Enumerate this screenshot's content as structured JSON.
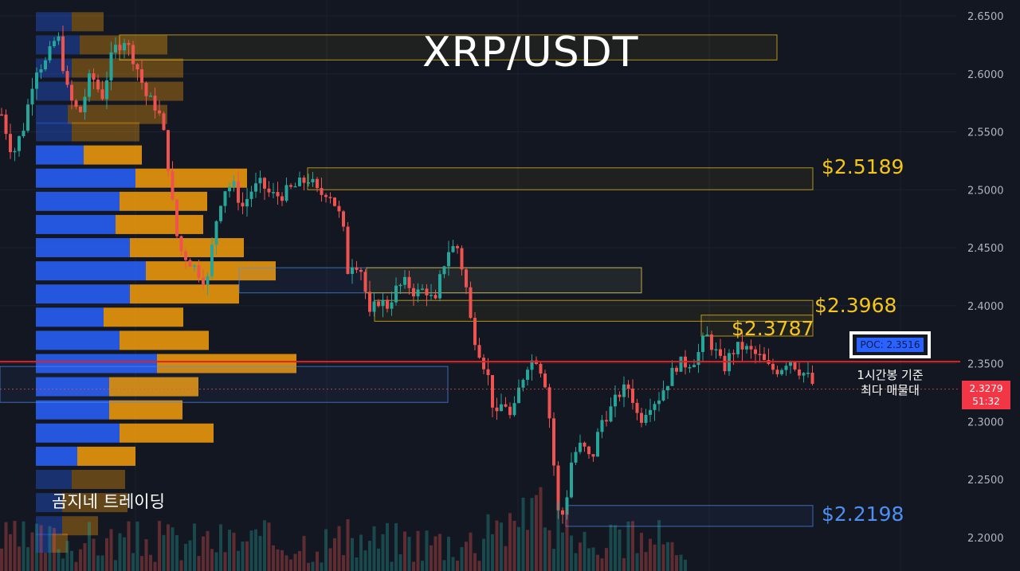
{
  "title": "XRP/USDT",
  "brand": "곰지네 트레이딩",
  "levels": {
    "l1": "$2.5189",
    "l2": "$2.3968",
    "l3": "$2.3787",
    "l4": "$2.2198"
  },
  "poc": {
    "label": "POC: 2.3516",
    "note_line1": "1시간봉 기준",
    "note_line2": "최다 매물대"
  },
  "current": {
    "price": "2.3279",
    "countdown": "51:32"
  },
  "colors": {
    "background": "#131722",
    "up": "#26a69a",
    "down": "#ef5350",
    "level_yellow": "#f5c518",
    "level_blue": "#4d8ff2",
    "poc_line": "#e02424",
    "vp_blue": "#2962ff",
    "vp_orange": "#f59e0b"
  },
  "chart_data": {
    "type": "candlestick",
    "pair": "XRP/USDT",
    "timeframe_note": "1시간봉",
    "y_axis": {
      "ticks": [
        "2.6500",
        "2.6000",
        "2.5500",
        "2.5000",
        "2.4500",
        "2.4000",
        "2.3500",
        "2.3000",
        "2.2500",
        "2.2000"
      ],
      "range": [
        2.186,
        2.66
      ]
    },
    "levels": [
      {
        "price": 2.5189,
        "color": "yellow"
      },
      {
        "price": 2.3968,
        "color": "yellow"
      },
      {
        "price": 2.3787,
        "color": "yellow"
      },
      {
        "price": 2.2198,
        "color": "blue"
      }
    ],
    "poc_price": 2.3516,
    "last_price": 2.3279,
    "close_path": [
      [
        0,
        2.565
      ],
      [
        14,
        2.53
      ],
      [
        28,
        2.555
      ],
      [
        42,
        2.605
      ],
      [
        56,
        2.61
      ],
      [
        70,
        2.635
      ],
      [
        84,
        2.58
      ],
      [
        98,
        2.565
      ],
      [
        112,
        2.6
      ],
      [
        126,
        2.58
      ],
      [
        140,
        2.62
      ],
      [
        154,
        2.63
      ],
      [
        168,
        2.61
      ],
      [
        182,
        2.58
      ],
      [
        196,
        2.57
      ],
      [
        206,
        2.54
      ],
      [
        214,
        2.49
      ],
      [
        222,
        2.45
      ],
      [
        234,
        2.44
      ],
      [
        246,
        2.43
      ],
      [
        258,
        2.42
      ],
      [
        268,
        2.47
      ],
      [
        278,
        2.5
      ],
      [
        290,
        2.505
      ],
      [
        302,
        2.485
      ],
      [
        314,
        2.5
      ],
      [
        326,
        2.505
      ],
      [
        338,
        2.495
      ],
      [
        350,
        2.495
      ],
      [
        362,
        2.5
      ],
      [
        374,
        2.505
      ],
      [
        386,
        2.51
      ],
      [
        398,
        2.495
      ],
      [
        410,
        2.5
      ],
      [
        420,
        2.485
      ],
      [
        428,
        2.47
      ],
      [
        434,
        2.43
      ],
      [
        442,
        2.44
      ],
      [
        452,
        2.43
      ],
      [
        462,
        2.39
      ],
      [
        472,
        2.405
      ],
      [
        484,
        2.4
      ],
      [
        496,
        2.415
      ],
      [
        508,
        2.42
      ],
      [
        520,
        2.41
      ],
      [
        532,
        2.415
      ],
      [
        544,
        2.4
      ],
      [
        552,
        2.43
      ],
      [
        562,
        2.45
      ],
      [
        572,
        2.45
      ],
      [
        582,
        2.42
      ],
      [
        590,
        2.38
      ],
      [
        600,
        2.36
      ],
      [
        610,
        2.34
      ],
      [
        620,
        2.3
      ],
      [
        630,
        2.32
      ],
      [
        640,
        2.3
      ],
      [
        650,
        2.33
      ],
      [
        660,
        2.35
      ],
      [
        672,
        2.355
      ],
      [
        684,
        2.33
      ],
      [
        692,
        2.27
      ],
      [
        700,
        2.21
      ],
      [
        708,
        2.23
      ],
      [
        716,
        2.27
      ],
      [
        728,
        2.28
      ],
      [
        740,
        2.265
      ],
      [
        752,
        2.3
      ],
      [
        764,
        2.31
      ],
      [
        776,
        2.325
      ],
      [
        788,
        2.33
      ],
      [
        800,
        2.3
      ],
      [
        812,
        2.315
      ],
      [
        824,
        2.32
      ],
      [
        836,
        2.335
      ],
      [
        848,
        2.35
      ],
      [
        860,
        2.35
      ],
      [
        872,
        2.355
      ],
      [
        884,
        2.375
      ],
      [
        896,
        2.36
      ],
      [
        906,
        2.345
      ],
      [
        916,
        2.36
      ],
      [
        928,
        2.365
      ],
      [
        940,
        2.36
      ],
      [
        952,
        2.355
      ],
      [
        964,
        2.345
      ],
      [
        976,
        2.345
      ],
      [
        988,
        2.355
      ],
      [
        1000,
        2.345
      ],
      [
        1010,
        2.34
      ],
      [
        1020,
        2.33
      ]
    ],
    "volume_profile": [
      {
        "price": 2.645,
        "buy": 45,
        "sell": 40
      },
      {
        "price": 2.625,
        "buy": 55,
        "sell": 110
      },
      {
        "price": 2.605,
        "buy": 45,
        "sell": 140
      },
      {
        "price": 2.585,
        "buy": 45,
        "sell": 140
      },
      {
        "price": 2.565,
        "buy": 40,
        "sell": 125
      },
      {
        "price": 2.55,
        "buy": 45,
        "sell": 85
      },
      {
        "price": 2.53,
        "buy": 60,
        "sell": 73
      },
      {
        "price": 2.51,
        "buy": 125,
        "sell": 140
      },
      {
        "price": 2.49,
        "buy": 105,
        "sell": 110
      },
      {
        "price": 2.47,
        "buy": 100,
        "sell": 110
      },
      {
        "price": 2.45,
        "buy": 118,
        "sell": 143
      },
      {
        "price": 2.43,
        "buy": 138,
        "sell": 163
      },
      {
        "price": 2.41,
        "buy": 118,
        "sell": 137
      },
      {
        "price": 2.39,
        "buy": 85,
        "sell": 100
      },
      {
        "price": 2.37,
        "buy": 105,
        "sell": 112
      },
      {
        "price": 2.35,
        "buy": 152,
        "sell": 175
      },
      {
        "price": 2.33,
        "buy": 92,
        "sell": 112
      },
      {
        "price": 2.31,
        "buy": 92,
        "sell": 92
      },
      {
        "price": 2.29,
        "buy": 105,
        "sell": 118
      },
      {
        "price": 2.27,
        "buy": 52,
        "sell": 73
      },
      {
        "price": 2.25,
        "buy": 45,
        "sell": 67
      },
      {
        "price": 2.23,
        "buy": 33,
        "sell": 82
      },
      {
        "price": 2.21,
        "buy": 33,
        "sell": 45
      },
      {
        "price": 2.195,
        "buy": 20,
        "sell": 20
      }
    ]
  }
}
